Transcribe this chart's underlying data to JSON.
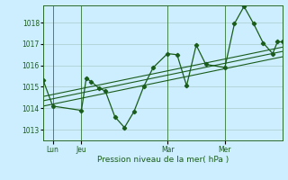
{
  "background_color": "#cceeff",
  "grid_color": "#aacccc",
  "line_color": "#1a5c1a",
  "xlabel": "Pression niveau de la mer( hPa )",
  "ylim": [
    1012.5,
    1018.8
  ],
  "yticks": [
    1013,
    1014,
    1015,
    1016,
    1017,
    1018
  ],
  "xtick_labels": [
    "Lun",
    "Jeu",
    "Mar",
    "Mer"
  ],
  "xtick_positions": [
    1,
    4,
    13,
    19
  ],
  "xlim": [
    0,
    25
  ],
  "series_main": {
    "x": [
      0,
      1,
      4,
      4.5,
      5,
      5.8,
      6.5,
      7.5,
      8.5,
      9.5,
      10.5,
      11.5,
      13,
      14,
      15,
      16,
      17,
      19,
      20,
      21,
      22,
      23,
      24,
      24.5,
      25
    ],
    "y": [
      1015.3,
      1014.1,
      1013.9,
      1015.4,
      1015.25,
      1014.95,
      1014.8,
      1013.6,
      1013.1,
      1013.85,
      1015.0,
      1015.9,
      1016.55,
      1016.5,
      1015.05,
      1016.95,
      1016.05,
      1015.9,
      1017.95,
      1018.75,
      1017.95,
      1017.05,
      1016.55,
      1017.1,
      1017.1
    ]
  },
  "trend_lines": [
    {
      "x": [
        0,
        25
      ],
      "y": [
        1014.55,
        1016.85
      ]
    },
    {
      "x": [
        0,
        25
      ],
      "y": [
        1014.35,
        1016.65
      ]
    },
    {
      "x": [
        0,
        25
      ],
      "y": [
        1014.1,
        1016.4
      ]
    }
  ],
  "vline_positions": [
    1,
    4,
    13,
    19
  ]
}
